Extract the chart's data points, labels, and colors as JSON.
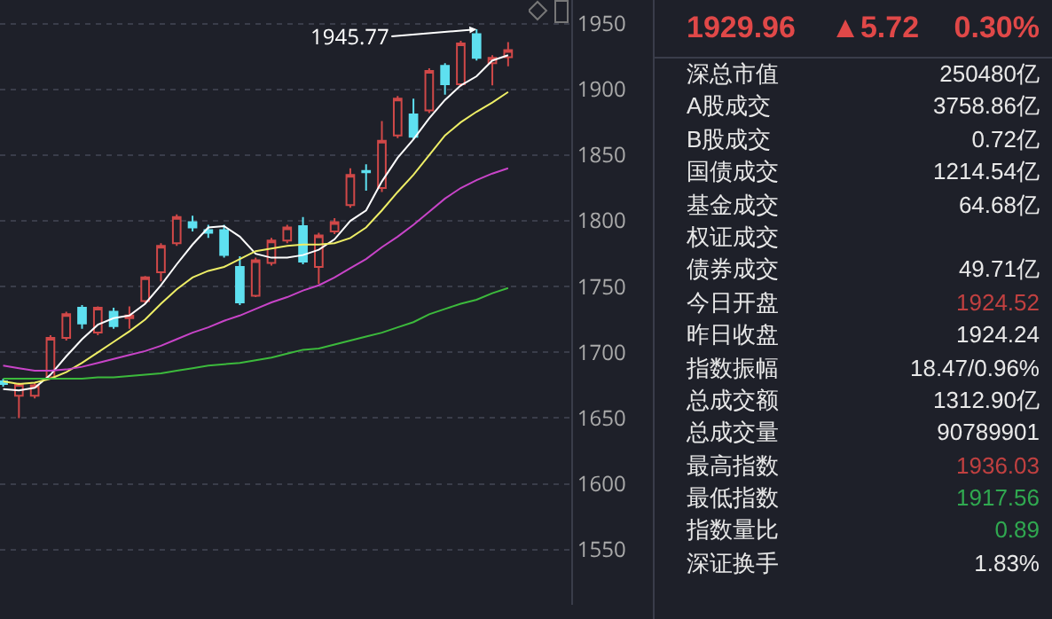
{
  "chart_data": [
    {
      "type": "candlestick",
      "categories": [
        null,
        null,
        null,
        null,
        null,
        null,
        null,
        null,
        null,
        null,
        null,
        null,
        null,
        null,
        null,
        null,
        null,
        null,
        null,
        null,
        null,
        null,
        null,
        null,
        null,
        null,
        null,
        null,
        null,
        null,
        null,
        null,
        null
      ],
      "ohlc": [
        [
          1678,
          1680,
          1674,
          1676
        ],
        [
          1667,
          1677,
          1650,
          1676
        ],
        [
          1667,
          1677,
          1665,
          1675
        ],
        [
          1681,
          1713,
          1680,
          1711
        ],
        [
          1711,
          1731,
          1709,
          1729
        ],
        [
          1734,
          1736,
          1718,
          1722
        ],
        [
          1715,
          1735,
          1713,
          1734
        ],
        [
          1731,
          1734,
          1718,
          1720
        ],
        [
          1726,
          1735,
          1718,
          1728
        ],
        [
          1739,
          1758,
          1737,
          1757
        ],
        [
          1761,
          1783,
          1754,
          1781
        ],
        [
          1783,
          1805,
          1781,
          1803
        ],
        [
          1799,
          1804,
          1792,
          1795
        ],
        [
          1793,
          1797,
          1787,
          1791
        ],
        [
          1793,
          1797,
          1772,
          1774
        ],
        [
          1765,
          1773,
          1736,
          1738
        ],
        [
          1743,
          1772,
          1742,
          1770
        ],
        [
          1768,
          1787,
          1766,
          1785
        ],
        [
          1785,
          1797,
          1783,
          1795
        ],
        [
          1796,
          1803,
          1767,
          1769
        ],
        [
          1765,
          1791,
          1752,
          1789
        ],
        [
          1792,
          1802,
          1790,
          1799
        ],
        [
          1812,
          1840,
          1810,
          1835
        ],
        [
          1838,
          1843,
          1823,
          1837
        ],
        [
          1825,
          1876,
          1822,
          1861
        ],
        [
          1865,
          1895,
          1863,
          1893
        ],
        [
          1881,
          1893,
          1862,
          1864
        ],
        [
          1884,
          1916,
          1882,
          1914
        ],
        [
          1918,
          1920,
          1896,
          1904
        ],
        [
          1904,
          1937,
          1902,
          1935
        ],
        [
          1942,
          1945.77,
          1922,
          1924
        ],
        [
          1920,
          1926,
          1903,
          1924
        ],
        [
          1924.52,
          1936.03,
          1917.56,
          1929.96
        ]
      ],
      "colors": [
        "#5ee0f0",
        "#d04848",
        "#d04848",
        "#d04848",
        "#d04848",
        "#5ee0f0",
        "#d04848",
        "#5ee0f0",
        "#d04848",
        "#d04848",
        "#d04848",
        "#d04848",
        "#5ee0f0",
        "#5ee0f0",
        "#5ee0f0",
        "#5ee0f0",
        "#d04848",
        "#d04848",
        "#d04848",
        "#5ee0f0",
        "#d04848",
        "#d04848",
        "#d04848",
        "#5ee0f0",
        "#d04848",
        "#d04848",
        "#5ee0f0",
        "#d04848",
        "#5ee0f0",
        "#d04848",
        "#5ee0f0",
        "#d04848",
        "#d04848"
      ],
      "series": [
        {
          "type": "line",
          "color": "#ffffff",
          "values": [
            1672,
            1671,
            1673,
            1683,
            1697,
            1710,
            1721,
            1726,
            1728,
            1737,
            1751,
            1767,
            1782,
            1795,
            1796,
            1788,
            1775,
            1772,
            1772,
            1774,
            1778,
            1786,
            1800,
            1808,
            1830,
            1848,
            1862,
            1878,
            1892,
            1903,
            1910,
            1922,
            1926
          ]
        },
        {
          "type": "line",
          "color": "#eeee66",
          "values": [
            1678,
            1676,
            1677,
            1680,
            1685,
            1692,
            1700,
            1708,
            1716,
            1725,
            1737,
            1748,
            1757,
            1762,
            1765,
            1771,
            1777,
            1779,
            1781,
            1782,
            1782,
            1783,
            1787,
            1795,
            1808,
            1822,
            1835,
            1850,
            1865,
            1875,
            1883,
            1890,
            1898
          ]
        },
        {
          "type": "line",
          "color": "#c844c8",
          "values": [
            1690,
            1688,
            1686,
            1686,
            1687,
            1689,
            1692,
            1695,
            1698,
            1701,
            1705,
            1710,
            1715,
            1719,
            1724,
            1728,
            1733,
            1738,
            1742,
            1747,
            1751,
            1757,
            1764,
            1771,
            1780,
            1788,
            1797,
            1807,
            1817,
            1825,
            1831,
            1836,
            1840
          ]
        },
        {
          "type": "line",
          "color": "#3cba3c",
          "values": [
            1680,
            1680,
            1680,
            1680,
            1680,
            1680,
            1681,
            1681,
            1682,
            1683,
            1684,
            1686,
            1688,
            1690,
            1691,
            1692,
            1694,
            1696,
            1699,
            1702,
            1703,
            1706,
            1709,
            1712,
            1715,
            1719,
            1723,
            1729,
            1733,
            1737,
            1740,
            1745,
            1749
          ]
        }
      ],
      "ylim": [
        1508,
        1968
      ],
      "yticks": [
        1550,
        1600,
        1650,
        1700,
        1750,
        1800,
        1850,
        1900,
        1950
      ],
      "grid": "y",
      "tick_labels": "y",
      "annotations": [
        "1945.77"
      ]
    },
    {
      "type": "other",
      "annotations": [
        "1929.96",
        "▲5.72",
        "0.30%"
      ],
      "categories": [
        "深总市值",
        "A股成交",
        "B股成交",
        "国债成交",
        "基金成交",
        "权证成交",
        "债券成交",
        "今日开盘",
        "昨日收盘",
        "指数振幅",
        "总成交额",
        "总成交量",
        "最高指数",
        "最低指数",
        "指数量比",
        "深证换手"
      ],
      "value_labels": [
        "250480亿",
        "3758.86亿",
        "0.72亿",
        "1214.54亿",
        "64.68亿",
        null,
        "49.71亿",
        "1924.52",
        "1924.24",
        "18.47/0.96%",
        "1312.90亿",
        "90789901",
        "1936.03",
        "1917.56",
        "0.89",
        "1.83%"
      ],
      "colors": [
        "#e8e8e8",
        "#e8e8e8",
        "#e8e8e8",
        "#e8e8e8",
        "#e8e8e8",
        "#e8e8e8",
        "#e8e8e8",
        "#c04040",
        "#e8e8e8",
        "#e8e8e8",
        "#e8e8e8",
        "#e8e8e8",
        "#c04040",
        "#30a850",
        "#30a850",
        "#e8e8e8"
      ]
    }
  ]
}
